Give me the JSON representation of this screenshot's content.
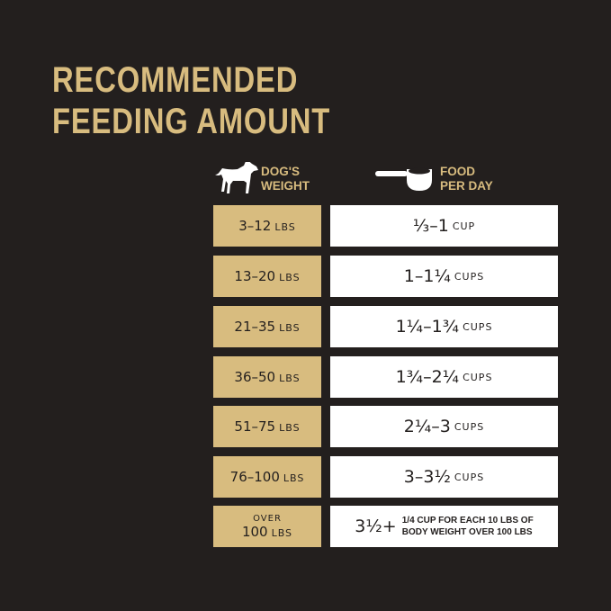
{
  "title": {
    "line1": "RECOMMENDED",
    "line2": "FEEDING AMOUNT"
  },
  "headers": {
    "weight": {
      "line1": "DOG'S",
      "line2": "WEIGHT",
      "icon": "dog-icon"
    },
    "food": {
      "line1": "FOOD",
      "line2": "PER DAY",
      "icon": "measuring-cup-icon"
    }
  },
  "colors": {
    "background": "#231f1e",
    "accent": "#d8bc7f"
  },
  "rows": [
    {
      "weight": "3–12",
      "unit": "LBS",
      "food": "⅓–1",
      "food_unit": "CUP"
    },
    {
      "weight": "13–20",
      "unit": "LBS",
      "food": "1–1¼",
      "food_unit": "CUPS"
    },
    {
      "weight": "21–35",
      "unit": "LBS",
      "food": "1¼–1¾",
      "food_unit": "CUPS"
    },
    {
      "weight": "36–50",
      "unit": "LBS",
      "food": "1¾–2¼",
      "food_unit": "CUPS"
    },
    {
      "weight": "51–75",
      "unit": "LBS",
      "food": "2¼–3",
      "food_unit": "CUPS"
    },
    {
      "weight": "76–100",
      "unit": "LBS",
      "food": "3–3½",
      "food_unit": "CUPS"
    },
    {
      "prefix": "OVER",
      "weight": "100",
      "unit": "LBS",
      "food": "3½+",
      "note1": "1/4 CUP FOR EACH 10 LBS OF",
      "note2": "BODY WEIGHT OVER 100 LBS"
    }
  ]
}
